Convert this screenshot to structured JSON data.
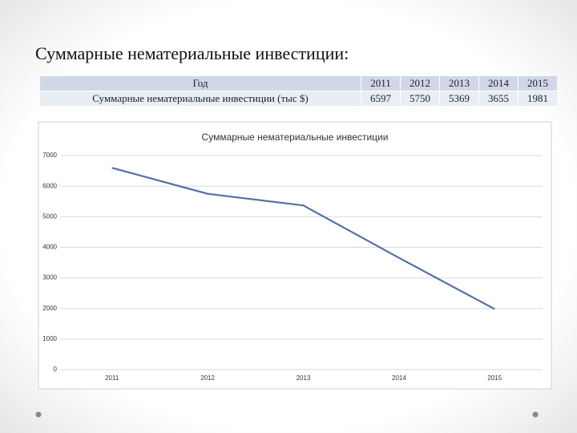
{
  "title": "Суммарные нематериальные инвестиции:",
  "table": {
    "header": [
      "Год",
      "2011",
      "2012",
      "2013",
      "2014",
      "2015"
    ],
    "rows": [
      [
        "Суммарные нематериальные инвестиции (тыс $)",
        6597,
        5750,
        5369,
        3655,
        1981
      ]
    ]
  },
  "chart_data": {
    "type": "line",
    "title": "Суммарные нематериальные инвестиции",
    "categories": [
      "2011",
      "2012",
      "2013",
      "2014",
      "2015"
    ],
    "values": [
      6597,
      5750,
      5369,
      3655,
      1981
    ],
    "color": "#5470a8",
    "ylim": [
      0,
      7000
    ],
    "yticks": [
      0,
      1000,
      2000,
      3000,
      4000,
      5000,
      6000,
      7000
    ],
    "grid": true
  }
}
